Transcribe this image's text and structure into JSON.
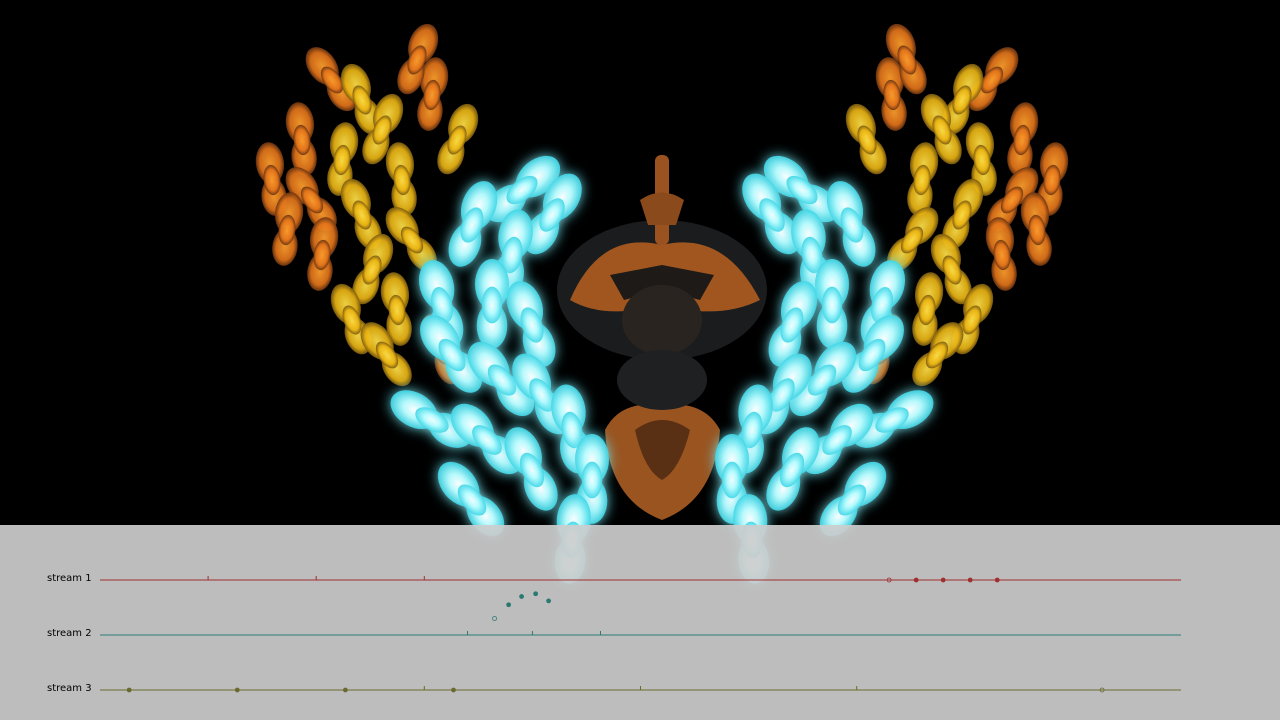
{
  "streams": [
    {
      "label": "stream 1",
      "color": "#a03030",
      "ticks": [
        0.1,
        0.2,
        0.3
      ],
      "events": [
        0.73,
        0.755,
        0.78,
        0.805,
        0.83
      ],
      "hollow": [
        true,
        false,
        false,
        false,
        false
      ]
    },
    {
      "label": "stream 2",
      "color": "#2a7a72",
      "ticks": [
        0.34,
        0.4,
        0.463
      ],
      "events": [],
      "hollow": [],
      "arc": [
        {
          "t": 0.365,
          "h": 0.3
        },
        {
          "t": 0.378,
          "h": 0.55
        },
        {
          "t": 0.39,
          "h": 0.7
        },
        {
          "t": 0.403,
          "h": 0.75
        },
        {
          "t": 0.415,
          "h": 0.62
        }
      ]
    },
    {
      "label": "stream 3",
      "color": "#6a6a30",
      "ticks": [
        0.3,
        0.5,
        0.7
      ],
      "events": [
        0.027,
        0.127,
        0.227,
        0.327,
        0.927
      ],
      "hollow": [
        false,
        false,
        false,
        false,
        true
      ]
    }
  ],
  "colors": {
    "background": "#000000",
    "panel": "#cdcdcd",
    "cyan": "#7ff6ff",
    "yellow": "#f1c21c",
    "orange": "#e87c1a",
    "bronze": "#a0561e"
  }
}
